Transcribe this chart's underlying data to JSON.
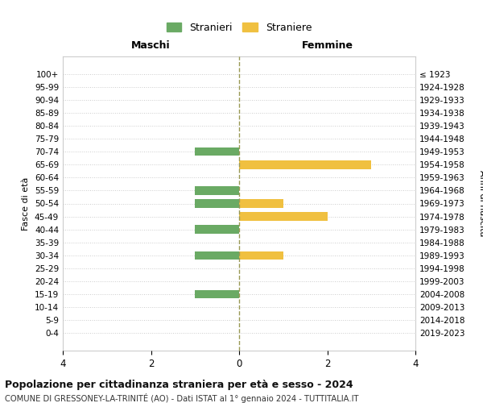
{
  "age_groups": [
    "100+",
    "95-99",
    "90-94",
    "85-89",
    "80-84",
    "75-79",
    "70-74",
    "65-69",
    "60-64",
    "55-59",
    "50-54",
    "45-49",
    "40-44",
    "35-39",
    "30-34",
    "25-29",
    "20-24",
    "15-19",
    "10-14",
    "5-9",
    "0-4"
  ],
  "birth_years": [
    "≤ 1923",
    "1924-1928",
    "1929-1933",
    "1934-1938",
    "1939-1943",
    "1944-1948",
    "1949-1953",
    "1954-1958",
    "1959-1963",
    "1964-1968",
    "1969-1973",
    "1974-1978",
    "1979-1983",
    "1984-1988",
    "1989-1993",
    "1994-1998",
    "1999-2003",
    "2004-2008",
    "2009-2013",
    "2014-2018",
    "2019-2023"
  ],
  "maschi": [
    0,
    0,
    0,
    0,
    0,
    0,
    1,
    0,
    0,
    1,
    1,
    0,
    1,
    0,
    1,
    0,
    0,
    1,
    0,
    0,
    0
  ],
  "femmine": [
    0,
    0,
    0,
    0,
    0,
    0,
    0,
    3,
    0,
    0,
    1,
    2,
    0,
    0,
    1,
    0,
    0,
    0,
    0,
    0,
    0
  ],
  "maschi_color": "#6aaa64",
  "femmine_color": "#f0c040",
  "background_color": "#ffffff",
  "grid_color": "#cccccc",
  "title": "Popolazione per cittadinanza straniera per età e sesso - 2024",
  "subtitle": "COMUNE DI GRESSONEY-LA-TRINITÉ (AO) - Dati ISTAT al 1° gennaio 2024 - TUTTITALIA.IT",
  "ylabel_left": "Fasce di età",
  "ylabel_right": "Anni di nascita",
  "xlabel_maschi": "Maschi",
  "xlabel_femmine": "Femmine",
  "legend_stranieri": "Stranieri",
  "legend_straniere": "Straniere",
  "xlim": 4
}
